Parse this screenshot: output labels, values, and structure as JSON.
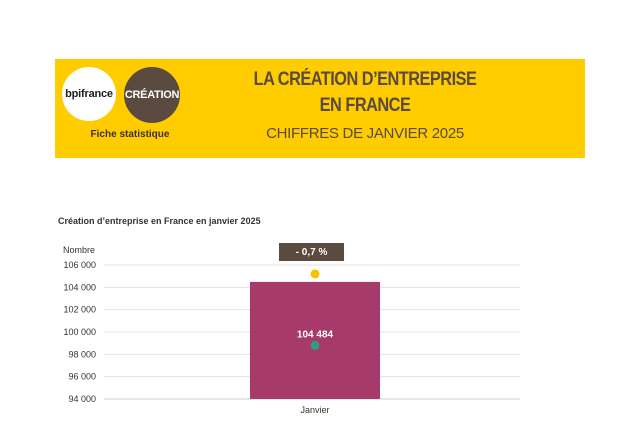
{
  "header": {
    "logo_bpi": "bpifrance",
    "logo_creation": "CRÉATION",
    "fiche": "Fiche statistique",
    "title_line1": "LA CRÉATION D’ENTREPRISE",
    "title_line2": "EN FRANCE",
    "subtitle": "CHIFFRES DE JANVIER 2025"
  },
  "chart_data": {
    "type": "bar",
    "title": "Création d’entreprise en France en janvier 2025",
    "ylabel": "Nombre",
    "categories": [
      "Janvier"
    ],
    "values": [
      104484
    ],
    "value_label": "104 484",
    "variation_label": "- 0,7 %",
    "marker_yellow": 105200,
    "marker_green": 98800,
    "ylim": [
      94000,
      106000
    ],
    "yticks": [
      "94 000",
      "96 000",
      "98 000",
      "100 000",
      "102 000",
      "104 000",
      "106 000"
    ],
    "ytick_values": [
      94000,
      96000,
      98000,
      100000,
      102000,
      104000,
      106000
    ],
    "grid": true,
    "colors": {
      "bar": "#a63a6a",
      "yellow_marker": "#f2c500",
      "green_marker": "#2e9e7e",
      "badge": "#5a4a3f"
    }
  }
}
